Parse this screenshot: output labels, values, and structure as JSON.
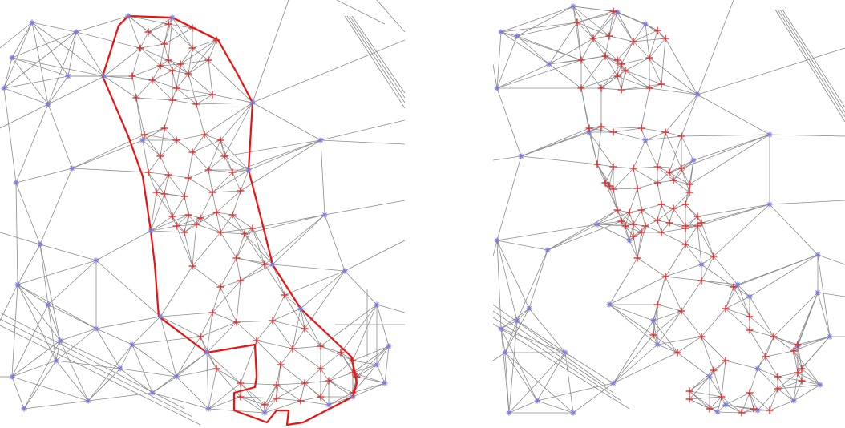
{
  "figure": {
    "panels": [
      {
        "name": "mesh-with-boundary",
        "has_boundary": true
      },
      {
        "name": "refined-mesh",
        "has_boundary": false
      }
    ]
  },
  "colors": {
    "background": "#ffffff",
    "edge": "#8c8c8c",
    "coarse_node": "#7b7bdb",
    "refined_node": "#e02020",
    "boundary": "#ee1111"
  },
  "legend_markers": {
    "coarse_node": "blue-star-marker",
    "refined_node": "red-plus-marker"
  }
}
